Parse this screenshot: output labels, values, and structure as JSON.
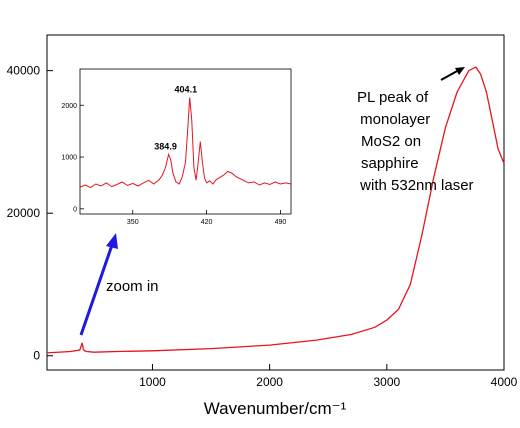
{
  "chart_data": [
    {
      "type": "line",
      "xlabel": "Wavenumber/cm⁻¹",
      "ylabel": "",
      "xlim": [
        100,
        4000
      ],
      "ylim": [
        -2000,
        45000
      ],
      "x_ticks": [
        1000,
        2000,
        3000,
        4000
      ],
      "y_ticks": [
        0,
        20000,
        40000
      ],
      "x_tick_labels": [
        "1000",
        "2000",
        "3000",
        "4000"
      ],
      "y_tick_labels": [
        "0",
        "20000",
        "40000"
      ],
      "grid": false,
      "color": "#e8141e",
      "series": [
        {
          "x": [
            100,
            300,
            380,
            400,
            410,
            420,
            440,
            500,
            700,
            1000,
            1500,
            2000,
            2400,
            2700,
            2900,
            3000,
            3100,
            3200,
            3300,
            3400,
            3500,
            3600,
            3700,
            3760,
            3800,
            3850,
            3900,
            3950,
            4000
          ],
          "y": [
            400,
            600,
            800,
            1800,
            900,
            700,
            600,
            500,
            600,
            700,
            1000,
            1500,
            2200,
            3000,
            4000,
            5000,
            6500,
            10000,
            17000,
            25000,
            32000,
            37000,
            40000,
            40500,
            39500,
            37000,
            33000,
            29000,
            27000
          ]
        }
      ],
      "annotations": [
        {
          "text_lines": [
            "PL peak of",
            " monolayer",
            "MoS2 on",
            "sapphire",
            " with 532nm laser"
          ],
          "arrow_to": [
            3760,
            40500
          ]
        },
        {
          "text": "zoom in"
        }
      ]
    },
    {
      "type": "line",
      "inset": true,
      "xlim": [
        300,
        500
      ],
      "ylim": [
        -100,
        2700
      ],
      "x_ticks": [
        350,
        420,
        490
      ],
      "y_ticks": [
        0,
        1000,
        2000
      ],
      "x_tick_labels": [
        "350",
        "420",
        "490"
      ],
      "y_tick_labels": [
        "0",
        "1000",
        "2000"
      ],
      "peak_labels": [
        {
          "x": 384.9,
          "y": 1050,
          "text": "384.9"
        },
        {
          "x": 404.1,
          "y": 2150,
          "text": "404.1"
        }
      ],
      "color": "#e8141e",
      "series": [
        {
          "x": [
            300,
            305,
            310,
            315,
            320,
            325,
            330,
            335,
            340,
            345,
            350,
            355,
            360,
            365,
            370,
            375,
            378,
            381,
            384,
            386,
            388,
            391,
            394,
            397,
            400,
            402,
            404,
            406,
            408,
            410,
            412,
            414,
            416,
            418,
            420,
            423,
            426,
            429,
            432,
            436,
            440,
            444,
            448,
            452,
            456,
            460,
            465,
            470,
            475,
            480,
            485,
            490,
            495,
            500
          ],
          "y": [
            420,
            460,
            410,
            480,
            440,
            500,
            430,
            470,
            520,
            450,
            490,
            440,
            500,
            550,
            480,
            560,
            650,
            800,
            1050,
            950,
            700,
            520,
            480,
            620,
            900,
            1500,
            2150,
            1700,
            800,
            550,
            900,
            1300,
            900,
            600,
            500,
            540,
            480,
            560,
            600,
            650,
            720,
            690,
            620,
            580,
            540,
            500,
            520,
            460,
            500,
            470,
            520,
            480,
            500,
            480
          ]
        }
      ]
    }
  ]
}
